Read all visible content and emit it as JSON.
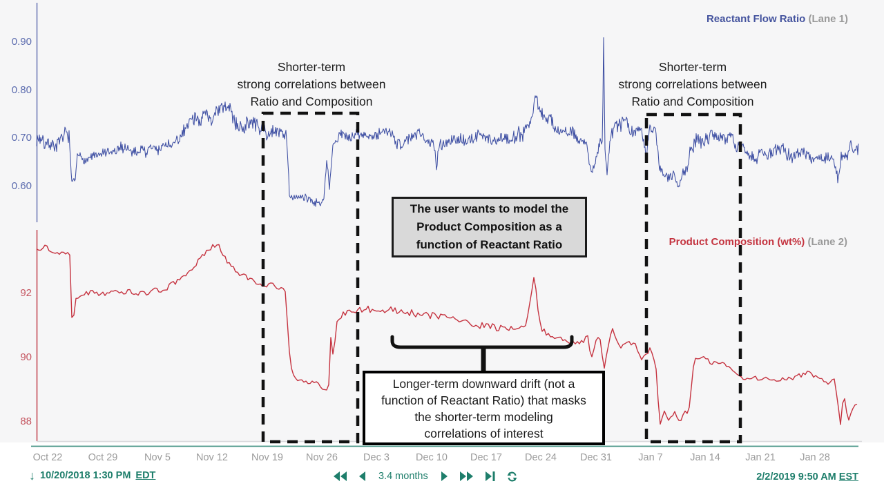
{
  "lanes": [
    {
      "name": "Reactant Flow Ratio",
      "tag": "(Lane 1)",
      "color": "#3E4FA3",
      "tick_color": "#5B6BAE",
      "axis_color": "#7A84BC",
      "ticks": [
        "0.90",
        "0.80",
        "0.70",
        "0.60"
      ]
    },
    {
      "name": "Product Composition (wt%)",
      "tag": "(Lane 2)",
      "color": "#C5323F",
      "tick_color": "#C55560",
      "axis_color": "#C85560",
      "ticks": [
        "92",
        "90",
        "88"
      ]
    }
  ],
  "annotations": {
    "shorter_term": {
      "lines": [
        "Shorter-term",
        "strong correlations between",
        "Ratio and Composition"
      ]
    },
    "model_box": {
      "lines": [
        "The user wants to model the",
        "Product Composition  as a",
        "function of Reactant Ratio"
      ]
    },
    "drift_box": {
      "lines": [
        "Longer-term downward drift (not a",
        "function of Reactant Ratio) that masks",
        "the shorter-term modeling",
        "correlations of interest"
      ]
    }
  },
  "footer": {
    "start_timestamp": "10/20/2018 1:30 PM",
    "start_timezone": "EDT",
    "duration_label": "3.4 months",
    "end_timestamp": "2/2/2019 9:50 AM",
    "end_timezone": "EST",
    "control_icons": [
      "download-arrow-icon",
      "skip-to-start-icon",
      "step-backward-icon",
      "step-forward-icon",
      "fast-forward-icon",
      "skip-to-end-icon",
      "auto-update-icon"
    ]
  },
  "colors": {
    "lane1_series": "#3E4FA3",
    "lane2_series": "#C5323F",
    "controls_teal": "#1E7E6B",
    "axis_time_line": "#2F8877",
    "chart_bottom_line": "#D9D9DC",
    "date_label_gray": "#9B9B9B",
    "model_box_bg": "#D9D9D9",
    "chart_bg": "#F6F6F7",
    "annotation_ink": "#111111"
  },
  "chart_data": {
    "type": "line",
    "title": "",
    "x_axis": {
      "start": "10/20/2018 1:30 PM EDT",
      "end": "2/2/2019 9:50 AM EST",
      "unit": "days since start",
      "range": [
        0,
        105
      ],
      "tick_labels": [
        "Oct 22",
        "Oct 29",
        "Nov 5",
        "Nov 12",
        "Nov 19",
        "Nov 26",
        "Dec 3",
        "Dec 10",
        "Dec 17",
        "Dec 24",
        "Dec 31",
        "Jan 7",
        "Jan 14",
        "Jan 21",
        "Jan 28"
      ],
      "first_tick_day": 1.44,
      "tick_interval_days": 7,
      "grid": false
    },
    "series": [
      {
        "name": "Reactant Flow Ratio",
        "lane": 1,
        "color": "#3E4FA3",
        "y_ticks": [
          0.9,
          0.8,
          0.7,
          0.6
        ],
        "ylim": [
          0.55,
          0.97
        ],
        "keypoints": [
          [
            0,
            0.7
          ],
          [
            3,
            0.7
          ],
          [
            4.2,
            0.7
          ],
          [
            4.45,
            0.59
          ],
          [
            4.9,
            0.605
          ],
          [
            5.2,
            0.655
          ],
          [
            7,
            0.66
          ],
          [
            10,
            0.668
          ],
          [
            13,
            0.672
          ],
          [
            16,
            0.678
          ],
          [
            18.5,
            0.69
          ],
          [
            19.5,
            0.74
          ],
          [
            20.5,
            0.755
          ],
          [
            22.5,
            0.748
          ],
          [
            24,
            0.752
          ],
          [
            25.5,
            0.735
          ],
          [
            27,
            0.73
          ],
          [
            28.5,
            0.722
          ],
          [
            29.5,
            0.708
          ],
          [
            31,
            0.712
          ],
          [
            31.9,
            0.708
          ],
          [
            32.3,
            0.585
          ],
          [
            33.5,
            0.575
          ],
          [
            36.3,
            0.572
          ],
          [
            36.8,
            0.6
          ],
          [
            37.1,
            0.67
          ],
          [
            37.4,
            0.6
          ],
          [
            37.9,
            0.688
          ],
          [
            38.6,
            0.7
          ],
          [
            42,
            0.702
          ],
          [
            45,
            0.7
          ],
          [
            48,
            0.7
          ],
          [
            50.8,
            0.697
          ],
          [
            51.1,
            0.648
          ],
          [
            51.4,
            0.7
          ],
          [
            54,
            0.7
          ],
          [
            57,
            0.703
          ],
          [
            60,
            0.7
          ],
          [
            62,
            0.712
          ],
          [
            63.3,
            0.76
          ],
          [
            63.8,
            0.808
          ],
          [
            64.3,
            0.762
          ],
          [
            65,
            0.745
          ],
          [
            66,
            0.733
          ],
          [
            67.5,
            0.705
          ],
          [
            69,
            0.698
          ],
          [
            70.3,
            0.682
          ],
          [
            70.9,
            0.632
          ],
          [
            71.4,
            0.66
          ],
          [
            71.9,
            0.697
          ],
          [
            72.3,
            0.7
          ],
          [
            72.45,
            0.94
          ],
          [
            72.6,
            0.7
          ],
          [
            72.9,
            0.64
          ],
          [
            73.3,
            0.718
          ],
          [
            74.5,
            0.73
          ],
          [
            75.5,
            0.733
          ],
          [
            76.5,
            0.703
          ],
          [
            77.3,
            0.718
          ],
          [
            77.9,
            0.66
          ],
          [
            78.3,
            0.728
          ],
          [
            79.1,
            0.718
          ],
          [
            79.6,
            0.642
          ],
          [
            80.5,
            0.622
          ],
          [
            81.5,
            0.635
          ],
          [
            82.1,
            0.612
          ],
          [
            82.6,
            0.64
          ],
          [
            83.5,
            0.68
          ],
          [
            84.5,
            0.708
          ],
          [
            86,
            0.713
          ],
          [
            87.5,
            0.708
          ],
          [
            88.6,
            0.698
          ],
          [
            89.6,
            0.675
          ],
          [
            91,
            0.67
          ],
          [
            93,
            0.674
          ],
          [
            95,
            0.668
          ],
          [
            96.2,
            0.66
          ],
          [
            97.5,
            0.67
          ],
          [
            99,
            0.664
          ],
          [
            100.5,
            0.668
          ],
          [
            101.8,
            0.66
          ],
          [
            102.4,
            0.618
          ],
          [
            102.8,
            0.662
          ],
          [
            104,
            0.688
          ],
          [
            105,
            0.684
          ]
        ],
        "noise_envelope": [
          [
            0,
            0.013
          ],
          [
            4,
            0.013
          ],
          [
            5,
            0.008
          ],
          [
            10,
            0.01
          ],
          [
            18,
            0.012
          ],
          [
            20,
            0.016
          ],
          [
            28,
            0.014
          ],
          [
            31,
            0.01
          ],
          [
            33,
            0.009
          ],
          [
            37,
            0.008
          ],
          [
            39,
            0.011
          ],
          [
            50,
            0.011
          ],
          [
            60,
            0.011
          ],
          [
            63,
            0.016
          ],
          [
            66,
            0.013
          ],
          [
            70,
            0.01
          ],
          [
            72,
            0.008
          ],
          [
            74,
            0.013
          ],
          [
            79,
            0.008
          ],
          [
            81,
            0.009
          ],
          [
            84,
            0.014
          ],
          [
            88,
            0.012
          ],
          [
            95,
            0.011
          ],
          [
            105,
            0.011
          ]
        ]
      },
      {
        "name": "Product Composition (wt%)",
        "lane": 2,
        "color": "#C5323F",
        "y_ticks": [
          92,
          90,
          88
        ],
        "ylim": [
          87.5,
          93.7
        ],
        "keypoints": [
          [
            0,
            93.4
          ],
          [
            1.2,
            93.5
          ],
          [
            2.2,
            93.25
          ],
          [
            3.6,
            93.35
          ],
          [
            4.3,
            93.2
          ],
          [
            4.55,
            90.85
          ],
          [
            5.0,
            91.9
          ],
          [
            5.6,
            92.05
          ],
          [
            7,
            92.1
          ],
          [
            9,
            92.0
          ],
          [
            11,
            92.1
          ],
          [
            13,
            92.0
          ],
          [
            15,
            92.05
          ],
          [
            17,
            92.2
          ],
          [
            19,
            92.55
          ],
          [
            20.5,
            92.9
          ],
          [
            22,
            93.4
          ],
          [
            23.2,
            93.45
          ],
          [
            24.2,
            93.05
          ],
          [
            25.5,
            92.65
          ],
          [
            27,
            92.45
          ],
          [
            28.6,
            92.3
          ],
          [
            30.4,
            92.25
          ],
          [
            31.8,
            92.1
          ],
          [
            32.4,
            89.7
          ],
          [
            33.2,
            89.3
          ],
          [
            34.5,
            89.2
          ],
          [
            35.5,
            89.25
          ],
          [
            36.3,
            89.1
          ],
          [
            36.9,
            88.95
          ],
          [
            37.3,
            89.05
          ],
          [
            37.6,
            90.75
          ],
          [
            37.9,
            89.95
          ],
          [
            38.4,
            91.15
          ],
          [
            39.2,
            91.4
          ],
          [
            41,
            91.5
          ],
          [
            43,
            91.45
          ],
          [
            45,
            91.5
          ],
          [
            47,
            91.4
          ],
          [
            49,
            91.35
          ],
          [
            51,
            91.3
          ],
          [
            53,
            91.2
          ],
          [
            55,
            91.1
          ],
          [
            57,
            91.05
          ],
          [
            59,
            90.95
          ],
          [
            61,
            90.9
          ],
          [
            62.5,
            91.0
          ],
          [
            63.6,
            92.55
          ],
          [
            64.1,
            91.4
          ],
          [
            64.6,
            90.85
          ],
          [
            65.5,
            90.7
          ],
          [
            66.5,
            90.62
          ],
          [
            68,
            90.5
          ],
          [
            69.5,
            90.42
          ],
          [
            70.4,
            90.6
          ],
          [
            70.9,
            89.9
          ],
          [
            71.4,
            90.5
          ],
          [
            72.0,
            90.6
          ],
          [
            72.5,
            89.65
          ],
          [
            73.0,
            90.3
          ],
          [
            73.5,
            90.9
          ],
          [
            74.5,
            90.3
          ],
          [
            75.5,
            90.55
          ],
          [
            76.5,
            90.4
          ],
          [
            77.4,
            89.95
          ],
          [
            78.4,
            90.3
          ],
          [
            79.1,
            89.8
          ],
          [
            79.6,
            87.9
          ],
          [
            80.2,
            88.3
          ],
          [
            80.8,
            88.05
          ],
          [
            81.5,
            88.3
          ],
          [
            82.2,
            87.95
          ],
          [
            82.8,
            88.3
          ],
          [
            83.3,
            88.25
          ],
          [
            84.0,
            89.9
          ],
          [
            84.6,
            90.0
          ],
          [
            85.5,
            89.9
          ],
          [
            86.5,
            89.8
          ],
          [
            87.5,
            89.85
          ],
          [
            88.5,
            89.6
          ],
          [
            89.5,
            89.4
          ],
          [
            91,
            89.3
          ],
          [
            93,
            89.35
          ],
          [
            95,
            89.3
          ],
          [
            97,
            89.4
          ],
          [
            98.4,
            89.55
          ],
          [
            99.5,
            89.4
          ],
          [
            101,
            89.2
          ],
          [
            102,
            89.3
          ],
          [
            102.7,
            87.95
          ],
          [
            103.1,
            88.85
          ],
          [
            103.7,
            88.0
          ],
          [
            104.3,
            88.45
          ],
          [
            105,
            88.6
          ]
        ],
        "noise_envelope": [
          [
            0,
            0.07
          ],
          [
            4,
            0.06
          ],
          [
            6,
            0.08
          ],
          [
            18,
            0.09
          ],
          [
            31,
            0.07
          ],
          [
            33,
            0.05
          ],
          [
            37,
            0.05
          ],
          [
            40,
            0.1
          ],
          [
            60,
            0.1
          ],
          [
            63,
            0.08
          ],
          [
            70,
            0.07
          ],
          [
            79,
            0.05
          ],
          [
            83,
            0.05
          ],
          [
            85,
            0.07
          ],
          [
            105,
            0.07
          ]
        ]
      }
    ],
    "legend_position": "top-right per lane",
    "highlight_regions": [
      {
        "label": "Shorter-term strong correlations between Ratio and Composition",
        "x_days": [
          28.9,
          41.0
        ]
      },
      {
        "label": "Shorter-term strong correlations between Ratio and Composition",
        "x_days": [
          77.9,
          89.9
        ]
      }
    ]
  }
}
